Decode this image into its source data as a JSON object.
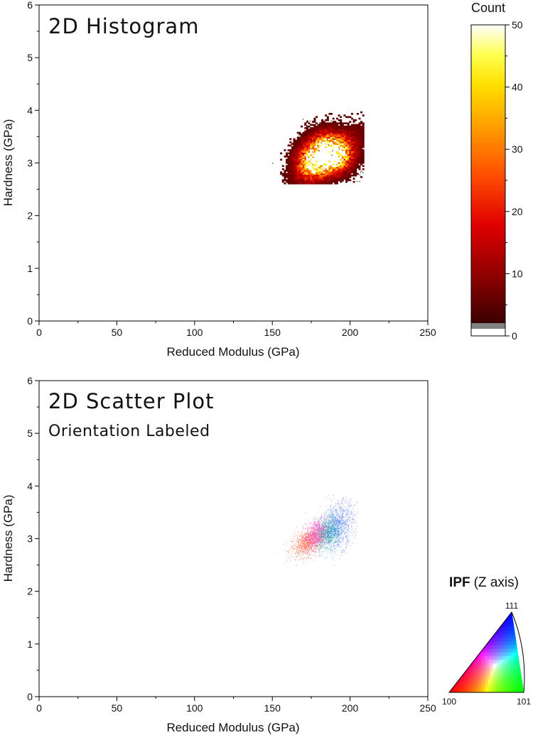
{
  "chart_data": [
    {
      "type": "heatmap",
      "title": "2D Histogram",
      "xlabel": "Reduced Modulus (GPa)",
      "ylabel": "Hardness (GPa)",
      "xlim": [
        0,
        250
      ],
      "ylim": [
        0,
        6
      ],
      "xticks": [
        "0",
        "50",
        "100",
        "150",
        "200",
        "250"
      ],
      "yticks": [
        "0",
        "1",
        "2",
        "3",
        "4",
        "5",
        "6"
      ],
      "clusters": [
        {
          "x": 176,
          "y": 3.02,
          "peak_count": 45
        },
        {
          "x": 190,
          "y": 3.12,
          "peak_count": 42
        },
        {
          "x": 184,
          "y": 3.3,
          "peak_count": 30
        }
      ],
      "data_extent": {
        "x": [
          150,
          207
        ],
        "y": [
          2.6,
          3.9
        ]
      },
      "colorbar": {
        "label": "Count",
        "ticks": [
          "0",
          "10",
          "20",
          "30",
          "40",
          "50"
        ],
        "range": [
          0,
          50
        ],
        "colors": [
          "#ffffff",
          "#7f7f7f",
          "#3a0000",
          "#8b0000",
          "#d00000",
          "#ff4000",
          "#ff8c00",
          "#ffd000",
          "#ffff40",
          "#ffffff"
        ]
      }
    },
    {
      "type": "scatter",
      "title": "2D Scatter Plot",
      "subtitle": "Orientation Labeled",
      "xlabel": "Reduced Modulus (GPa)",
      "ylabel": "Hardness (GPa)",
      "xlim": [
        0,
        250
      ],
      "ylim": [
        0,
        6
      ],
      "xticks": [
        "0",
        "50",
        "100",
        "150",
        "200",
        "250"
      ],
      "yticks": [
        "0",
        "1",
        "2",
        "3",
        "4",
        "5",
        "6"
      ],
      "series": [
        {
          "orientation": "100",
          "color": "#ff5a30",
          "center": [
            172,
            2.92
          ],
          "spread": [
            5,
            0.12
          ]
        },
        {
          "orientation": "near 100-111",
          "color": "#ff30c0",
          "center": [
            179,
            3.1
          ],
          "spread": [
            4,
            0.14
          ]
        },
        {
          "orientation": "near 101",
          "color": "#20c8a0",
          "center": [
            186,
            3.12
          ],
          "spread": [
            4,
            0.16
          ]
        },
        {
          "orientation": "111",
          "color": "#4060ff",
          "center": [
            192,
            3.25
          ],
          "spread": [
            5,
            0.22
          ]
        }
      ],
      "legend": {
        "title_bold": "IPF",
        "title_rest": "(Z axis)",
        "corners": [
          "100",
          "101",
          "111"
        ],
        "colors": {
          "100": "#ff0000",
          "101": "#00ff00",
          "111": "#0000ff"
        }
      }
    }
  ]
}
